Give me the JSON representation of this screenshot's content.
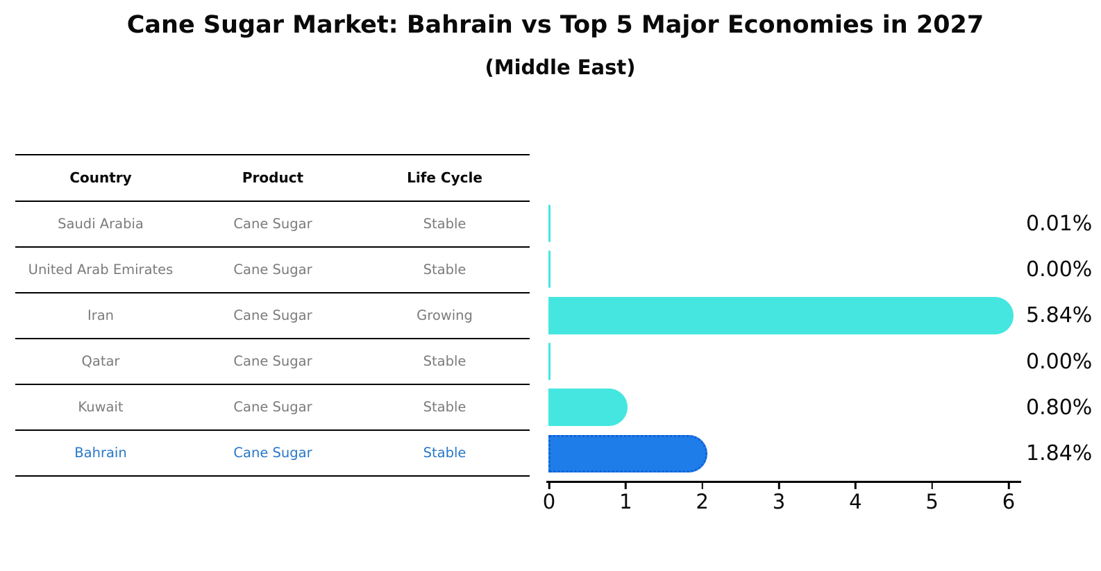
{
  "title": "Cane Sugar Market: Bahrain vs Top 5 Major Economies in 2027",
  "subtitle": "(Middle East)",
  "table": {
    "headers": [
      "Country",
      "Product",
      "Life Cycle"
    ],
    "rows": [
      {
        "country": "Saudi Arabia",
        "product": "Cane Sugar",
        "life_cycle": "Stable"
      },
      {
        "country": "United Arab Emirates",
        "product": "Cane Sugar",
        "life_cycle": "Stable"
      },
      {
        "country": "Iran",
        "product": "Cane Sugar",
        "life_cycle": "Growing"
      },
      {
        "country": "Qatar",
        "product": "Cane Sugar",
        "life_cycle": "Stable"
      },
      {
        "country": "Kuwait",
        "product": "Cane Sugar",
        "life_cycle": "Stable"
      },
      {
        "country": "Bahrain",
        "product": "Cane Sugar",
        "life_cycle": "Stable"
      }
    ]
  },
  "chart_data": {
    "type": "bar",
    "orientation": "horizontal",
    "title": "Cane Sugar Market: Bahrain vs Top 5 Major Economies in 2027",
    "subtitle": "(Middle East)",
    "categories": [
      "Saudi Arabia",
      "United Arab Emirates",
      "Iran",
      "Qatar",
      "Kuwait",
      "Bahrain"
    ],
    "values": [
      0.01,
      0.0,
      5.84,
      0.0,
      0.8,
      1.84
    ],
    "value_labels": [
      "0.01%",
      "0.00%",
      "5.84%",
      "0.00%",
      "0.80%",
      "1.84%"
    ],
    "xlabel": "",
    "ylabel": "",
    "xlim": [
      0,
      6
    ],
    "x_ticks": [
      0,
      1,
      2,
      3,
      4,
      5,
      6
    ],
    "grid": false,
    "legend": false,
    "highlight_category": "Bahrain",
    "bar_color": "#45e6e0",
    "highlight_color": "#1e7de8",
    "highlight_border_color": "#1260d8",
    "highlight_text_color": "#2878c8"
  }
}
